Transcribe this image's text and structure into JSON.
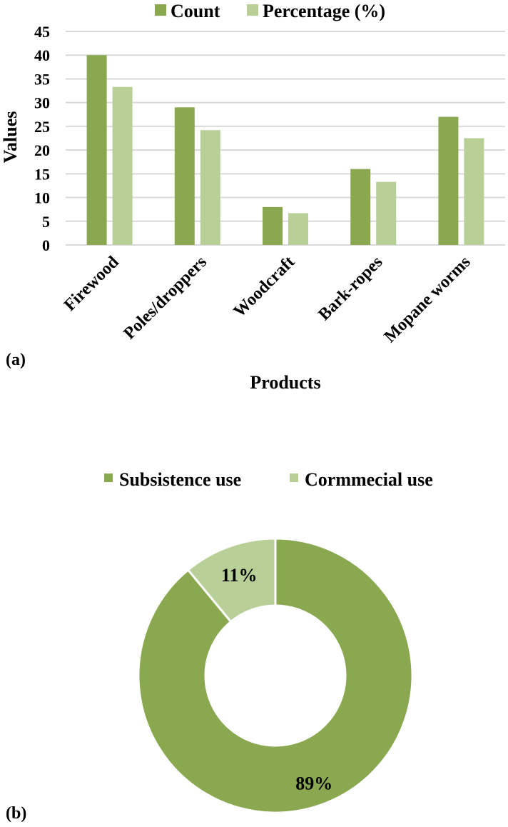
{
  "panels": {
    "a": "(a)",
    "b": "(b)"
  },
  "chart_data": [
    {
      "type": "bar",
      "categories": [
        "Firewood",
        "Poles/droppers",
        "Woodcraft",
        "Bark-ropes",
        "Mopane worms"
      ],
      "series": [
        {
          "name": "Count",
          "values": [
            40,
            29,
            8,
            16,
            27
          ],
          "color": "#8AA84F"
        },
        {
          "name": "Percentage (%)",
          "values": [
            33.3,
            24.2,
            6.7,
            13.3,
            22.5
          ],
          "color": "#B8CF98"
        }
      ],
      "xlabel": "Products",
      "ylabel": "Values",
      "ylim": [
        0,
        45
      ],
      "yticks": [
        "0",
        "5",
        "10",
        "15",
        "20",
        "25",
        "30",
        "35",
        "40",
        "45"
      ],
      "grid": true,
      "legend": "top"
    },
    {
      "type": "pie",
      "donut": true,
      "labels": [
        "Subsistence use",
        "Cormmecial use"
      ],
      "values": [
        89,
        11
      ],
      "data_labels": [
        "89%",
        "11%"
      ],
      "colors": [
        "#8AA84F",
        "#B8CF98"
      ],
      "legend": "top"
    }
  ]
}
